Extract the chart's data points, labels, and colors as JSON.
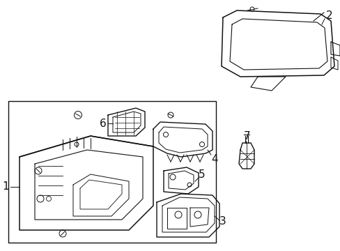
{
  "bg_color": "#ffffff",
  "line_color": "#111111",
  "label_color": "#000000",
  "fig_width": 4.89,
  "fig_height": 3.6,
  "dpi": 100
}
